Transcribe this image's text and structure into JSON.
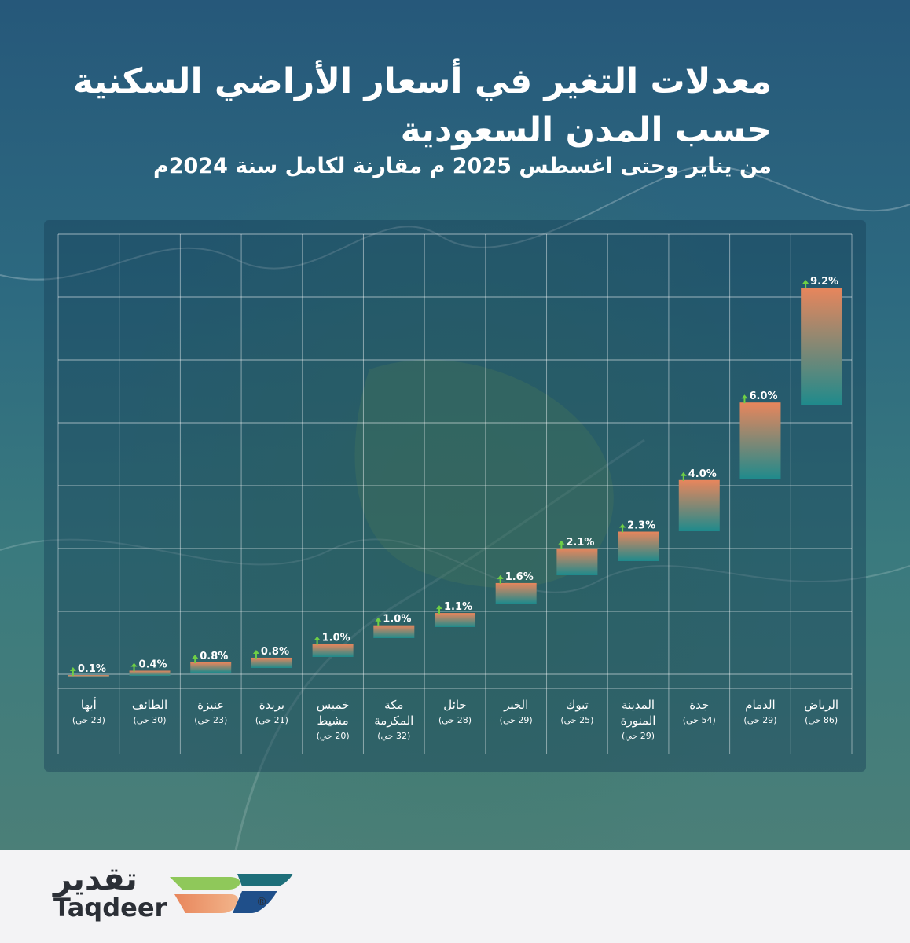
{
  "title_line1": "معدلات التغير في أسعار الأراضي السكنية",
  "title_line2": "حسب المدن السعودية",
  "subtitle": "من يناير وحتى اغسطس 2025 م مقارنة لكامل سنة 2024م",
  "colors": {
    "bar_top": "#e8865c",
    "bar_bottom": "#1e8a8c",
    "arrow": "#6fcf45",
    "grid": "#ffffff"
  },
  "chart_data": {
    "type": "bar",
    "title": "معدلات التغير في أسعار الأراضي السكنية حسب المدن السعودية",
    "direction": "rtl",
    "unit": "%",
    "categories": [
      {
        "name": "الرياض",
        "name2": "",
        "districts": "(86 حي)",
        "value": 9.2,
        "label": "9.2%"
      },
      {
        "name": "الدمام",
        "name2": "",
        "districts": "(29 حي)",
        "value": 6.0,
        "label": "6.0%"
      },
      {
        "name": "جدة",
        "name2": "",
        "districts": "(54 حي)",
        "value": 4.0,
        "label": "4.0%"
      },
      {
        "name": "المدينة",
        "name2": "المنورة",
        "districts": "(29 حي)",
        "value": 2.3,
        "label": "2.3%"
      },
      {
        "name": "تبوك",
        "name2": "",
        "districts": "(25 حي)",
        "value": 2.1,
        "label": "2.1%"
      },
      {
        "name": "الخبر",
        "name2": "",
        "districts": "(29 حي)",
        "value": 1.6,
        "label": "1.6%"
      },
      {
        "name": "حائل",
        "name2": "",
        "districts": "(28 حي)",
        "value": 1.1,
        "label": "1.1%"
      },
      {
        "name": "مكة",
        "name2": "المكرمة",
        "districts": "(32 حي)",
        "value": 1.0,
        "label": "1.0%"
      },
      {
        "name": "خميس",
        "name2": "مشيط",
        "districts": "(20 حي)",
        "value": 1.0,
        "label": "1.0%"
      },
      {
        "name": "بريدة",
        "name2": "",
        "districts": "(21 حي)",
        "value": 0.8,
        "label": "0.8%"
      },
      {
        "name": "عنيزة",
        "name2": "",
        "districts": "(23 حي)",
        "value": 0.8,
        "label": "0.8%"
      },
      {
        "name": "الطائف",
        "name2": "",
        "districts": "(30 حي)",
        "value": 0.4,
        "label": "0.4%"
      },
      {
        "name": "أبها",
        "name2": "",
        "districts": "(23 حي)",
        "value": 0.1,
        "label": "0.1%"
      }
    ],
    "ylim": [
      0,
      10
    ],
    "grid": true,
    "legend": "none"
  },
  "logo": {
    "arabic": "تقدير",
    "english": "Taqdeer",
    "registered": "®"
  }
}
